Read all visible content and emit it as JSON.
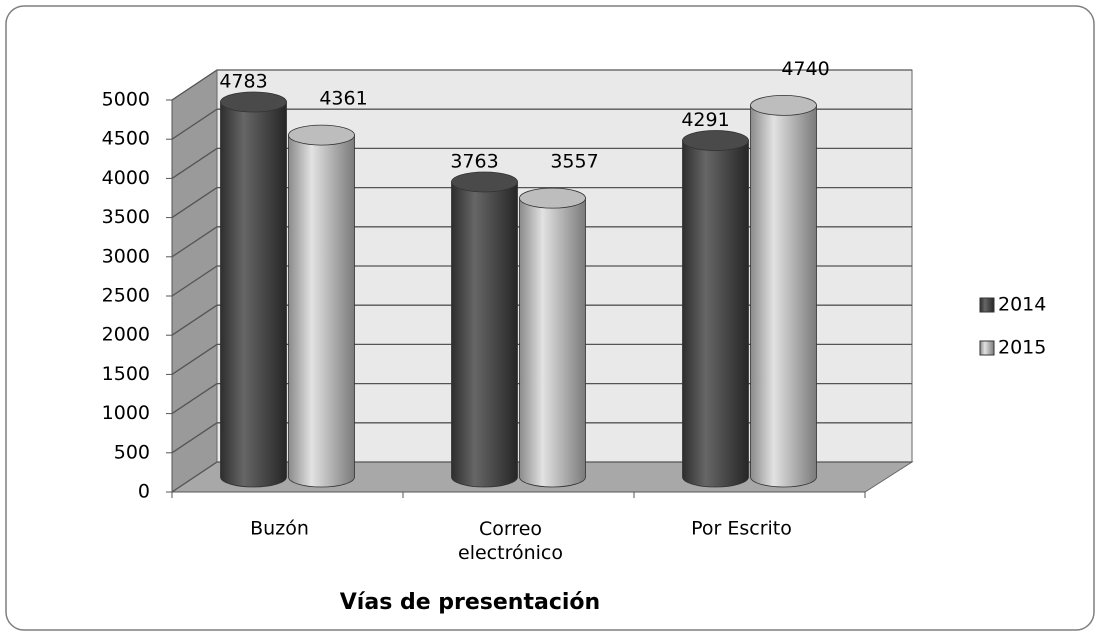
{
  "chart_data": {
    "type": "bar3d",
    "x_label": "Vías de presentación",
    "categories": [
      "Buzón",
      "Correo electrónico",
      "Por Escrito"
    ],
    "series": [
      {
        "name": "2014",
        "color": "#4a4a4a",
        "values": [
          4783,
          3763,
          4291
        ]
      },
      {
        "name": "2015",
        "color": "#bdbdbd",
        "values": [
          4361,
          3557,
          4740
        ]
      }
    ],
    "ylim": [
      0,
      5000
    ],
    "yticks": [
      0,
      500,
      1000,
      1500,
      2000,
      2500,
      3000,
      3500,
      4000,
      4500,
      5000
    ],
    "grid": true,
    "legend": "right"
  }
}
